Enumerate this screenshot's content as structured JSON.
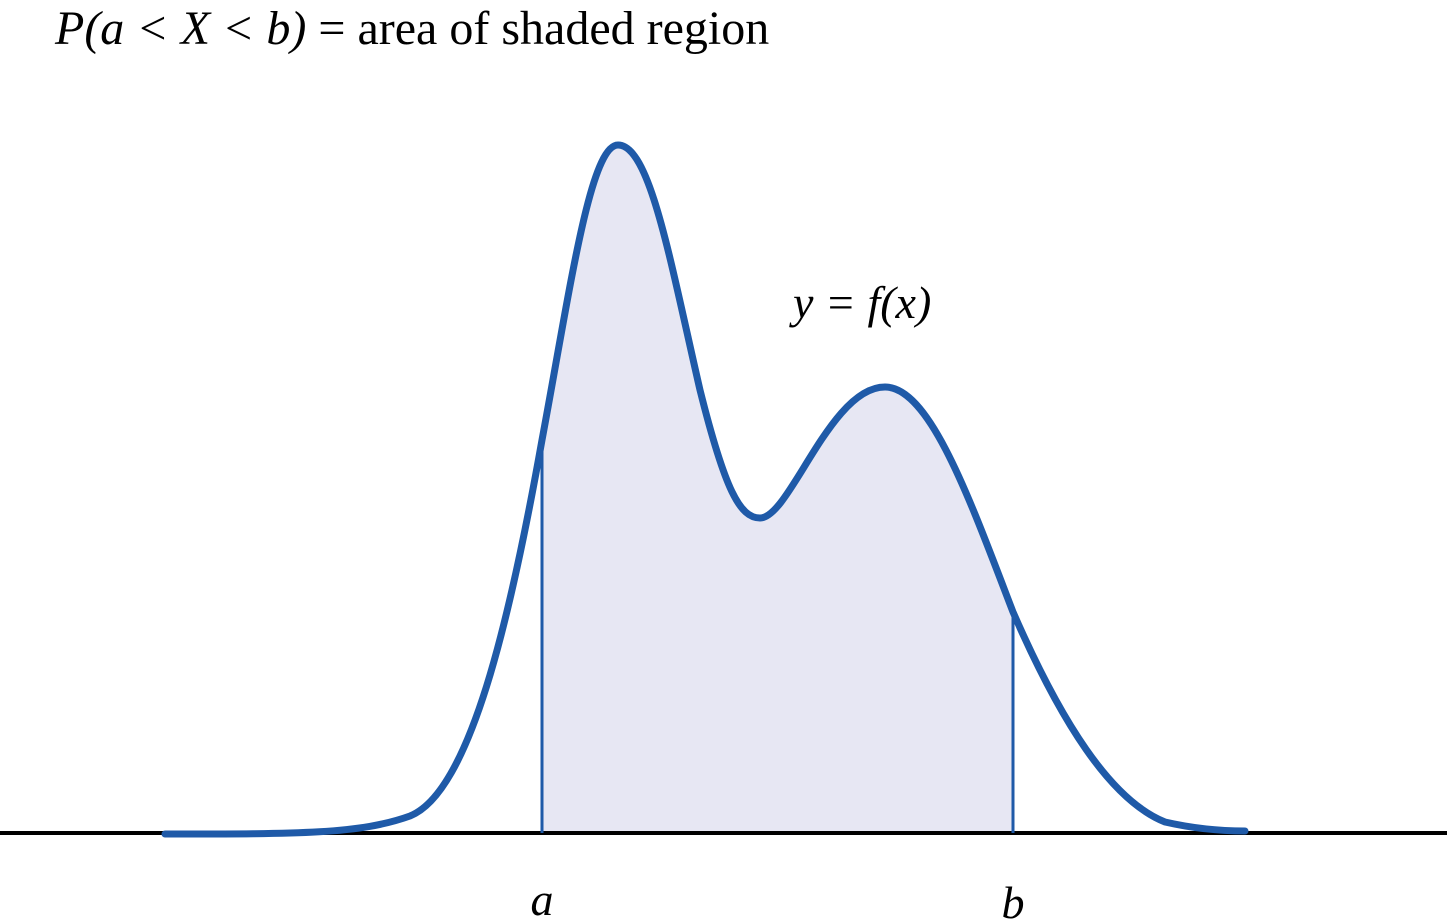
{
  "title": {
    "math": "P(a < X < b)",
    "text": "= area of shaded region"
  },
  "curve_label": "y = f(x)",
  "bounds": {
    "lower": "a",
    "upper": "b"
  }
}
